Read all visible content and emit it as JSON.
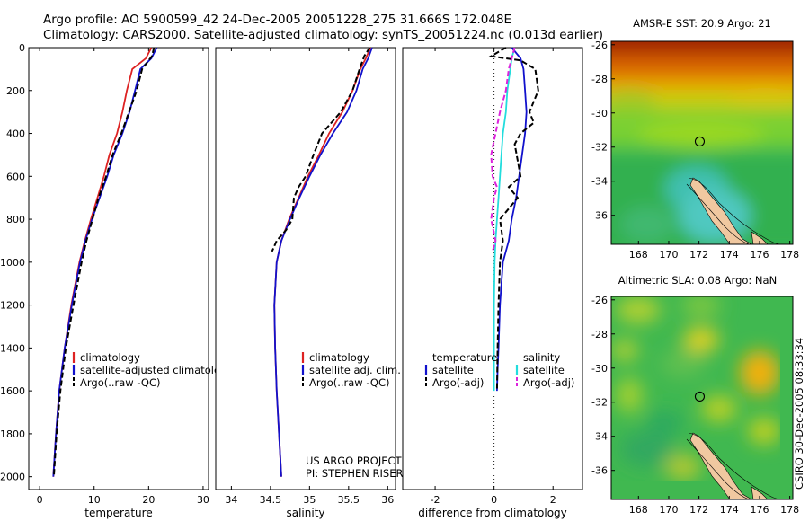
{
  "title_line1": "Argo profile: AO 5900599_42 24-Dec-2005 20051228_275 31.666S 172.048E",
  "title_line2": "Climatology: CARS2000. Satellite-adjusted climatology: synTS_20051224.nc (0.013d earlier)",
  "credit": "CSIRO 30-Dec-2005 08:33:34",
  "project_line1": "US ARGO PROJECT",
  "project_line2": "PI: STEPHEN RISER",
  "colors": {
    "climatology": "#dd2222",
    "satellite": "#1111cc",
    "argo": "#000000",
    "sat_salinity": "#22dddd",
    "argo_salinity": "#dd22dd"
  },
  "chart_data": [
    {
      "type": "line",
      "xlabel": "temperature",
      "ylabel": "",
      "xlim": [
        -2,
        31
      ],
      "ylim": [
        0,
        2060
      ],
      "y_reversed": true,
      "xticks": [
        0,
        10,
        20,
        30
      ],
      "yticks": [
        0,
        200,
        400,
        600,
        800,
        1000,
        1200,
        1400,
        1600,
        1800,
        2000
      ],
      "legend": [
        "climatology",
        "satellite-adjusted climatology",
        "Argo(..raw -QC)"
      ],
      "series": [
        {
          "name": "climatology",
          "style": "solid",
          "color": "#dd2222",
          "points": [
            [
              20.5,
              0
            ],
            [
              19.5,
              50
            ],
            [
              17,
              100
            ],
            [
              16,
              200
            ],
            [
              15.2,
              300
            ],
            [
              14.2,
              400
            ],
            [
              12.8,
              500
            ],
            [
              11.8,
              600
            ],
            [
              10.6,
              700
            ],
            [
              9.4,
              800
            ],
            [
              8.3,
              900
            ],
            [
              7.3,
              1000
            ],
            [
              5.8,
              1200
            ],
            [
              4.6,
              1400
            ],
            [
              3.6,
              1600
            ],
            [
              3.0,
              1800
            ],
            [
              2.5,
              2000
            ]
          ]
        },
        {
          "name": "satellite-adjusted climatology",
          "style": "solid",
          "color": "#1111cc",
          "points": [
            [
              21.5,
              0
            ],
            [
              20.5,
              50
            ],
            [
              18.5,
              100
            ],
            [
              17.5,
              200
            ],
            [
              16.5,
              300
            ],
            [
              15.2,
              400
            ],
            [
              13.6,
              500
            ],
            [
              12.4,
              600
            ],
            [
              11.0,
              700
            ],
            [
              9.6,
              800
            ],
            [
              8.4,
              900
            ],
            [
              7.4,
              1000
            ],
            [
              5.9,
              1200
            ],
            [
              4.6,
              1400
            ],
            [
              3.6,
              1600
            ],
            [
              3.0,
              1800
            ],
            [
              2.5,
              2000
            ]
          ]
        },
        {
          "name": "Argo(..raw -QC)",
          "style": "dash",
          "color": "#000000",
          "points": [
            [
              21.0,
              0
            ],
            [
              20.6,
              40
            ],
            [
              18.8,
              100
            ],
            [
              17.8,
              200
            ],
            [
              16.4,
              300
            ],
            [
              15.0,
              400
            ],
            [
              13.4,
              500
            ],
            [
              12.2,
              600
            ],
            [
              10.8,
              700
            ],
            [
              9.7,
              800
            ],
            [
              8.6,
              900
            ],
            [
              7.7,
              1000
            ],
            [
              6.2,
              1200
            ],
            [
              4.8,
              1400
            ],
            [
              3.8,
              1600
            ],
            [
              3.1,
              1800
            ],
            [
              2.6,
              2000
            ]
          ]
        }
      ]
    },
    {
      "type": "line",
      "xlabel": "salinity",
      "ylabel": "",
      "xlim": [
        33.8,
        36.1
      ],
      "ylim": [
        0,
        2060
      ],
      "y_reversed": true,
      "xticks": [
        34,
        34.5,
        35,
        35.5,
        36
      ],
      "legend": [
        "climatology",
        "satellite adj. clim.",
        "Argo(..raw -QC)"
      ],
      "series": [
        {
          "name": "climatology",
          "style": "solid",
          "color": "#dd2222",
          "points": [
            [
              35.78,
              0
            ],
            [
              35.72,
              50
            ],
            [
              35.65,
              100
            ],
            [
              35.55,
              200
            ],
            [
              35.42,
              300
            ],
            [
              35.25,
              400
            ],
            [
              35.12,
              500
            ],
            [
              34.98,
              600
            ],
            [
              34.86,
              700
            ],
            [
              34.74,
              800
            ],
            [
              34.64,
              900
            ],
            [
              34.58,
              1000
            ],
            [
              34.55,
              1200
            ],
            [
              34.56,
              1400
            ],
            [
              34.58,
              1600
            ],
            [
              34.61,
              1800
            ],
            [
              34.64,
              2000
            ]
          ]
        },
        {
          "name": "satellite adj. clim.",
          "style": "solid",
          "color": "#1111cc",
          "points": [
            [
              35.8,
              0
            ],
            [
              35.75,
              50
            ],
            [
              35.68,
              100
            ],
            [
              35.6,
              200
            ],
            [
              35.48,
              300
            ],
            [
              35.3,
              400
            ],
            [
              35.14,
              500
            ],
            [
              35.0,
              600
            ],
            [
              34.87,
              700
            ],
            [
              34.75,
              800
            ],
            [
              34.64,
              900
            ],
            [
              34.58,
              1000
            ],
            [
              34.55,
              1200
            ],
            [
              34.56,
              1400
            ],
            [
              34.58,
              1600
            ],
            [
              34.61,
              1800
            ],
            [
              34.64,
              2000
            ]
          ]
        },
        {
          "name": "Argo(..raw -QC)",
          "style": "dash",
          "color": "#000000",
          "points": [
            [
              35.77,
              0
            ],
            [
              35.7,
              40
            ],
            [
              35.64,
              100
            ],
            [
              35.55,
              200
            ],
            [
              35.4,
              300
            ],
            [
              35.16,
              400
            ],
            [
              35.05,
              500
            ],
            [
              34.95,
              600
            ],
            [
              34.86,
              650
            ],
            [
              34.8,
              700
            ],
            [
              34.78,
              800
            ],
            [
              34.7,
              850
            ],
            [
              34.58,
              900
            ],
            [
              34.52,
              950
            ]
          ]
        }
      ]
    },
    {
      "type": "line",
      "xlabel": "difference from climatology",
      "ylabel": "",
      "xlim": [
        -3.1,
        3.0
      ],
      "ylim": [
        0,
        2060
      ],
      "y_reversed": true,
      "xticks": [
        -2,
        0,
        2
      ],
      "legend": [
        "temperature",
        "satellite",
        "Argo(-adj)",
        "salinity",
        "satellite",
        "Argo(-adj)"
      ],
      "series": [
        {
          "name": "satellite",
          "group": "temperature",
          "style": "solid",
          "color": "#1111cc",
          "points": [
            [
              0.6,
              0
            ],
            [
              0.9,
              50
            ],
            [
              1.0,
              100
            ],
            [
              1.05,
              200
            ],
            [
              1.1,
              300
            ],
            [
              1.05,
              400
            ],
            [
              0.95,
              500
            ],
            [
              0.85,
              600
            ],
            [
              0.75,
              700
            ],
            [
              0.6,
              800
            ],
            [
              0.5,
              900
            ],
            [
              0.3,
              1000
            ],
            [
              0.2,
              1200
            ],
            [
              0.15,
              1400
            ],
            [
              0.12,
              1500
            ],
            [
              0.1,
              1600
            ]
          ]
        },
        {
          "name": "Argo(-adj)",
          "group": "temperature",
          "style": "dash",
          "color": "#000000",
          "points": [
            [
              0.4,
              0
            ],
            [
              -0.1,
              40
            ],
            [
              0.9,
              60
            ],
            [
              1.4,
              100
            ],
            [
              1.5,
              200
            ],
            [
              1.2,
              300
            ],
            [
              1.35,
              350
            ],
            [
              0.9,
              400
            ],
            [
              0.7,
              450
            ],
            [
              0.9,
              600
            ],
            [
              0.5,
              650
            ],
            [
              0.8,
              700
            ],
            [
              0.2,
              800
            ],
            [
              0.3,
              900
            ],
            [
              0.2,
              1000
            ],
            [
              0.15,
              1200
            ],
            [
              0.12,
              1400
            ],
            [
              0.1,
              1600
            ]
          ]
        },
        {
          "name": "satellite",
          "group": "salinity",
          "style": "solid",
          "color": "#22dddd",
          "points": [
            [
              0.7,
              0
            ],
            [
              0.6,
              50
            ],
            [
              0.55,
              100
            ],
            [
              0.45,
              200
            ],
            [
              0.4,
              300
            ],
            [
              0.3,
              400
            ],
            [
              0.25,
              500
            ],
            [
              0.2,
              600
            ],
            [
              0.15,
              700
            ],
            [
              0.1,
              800
            ],
            [
              0.05,
              900
            ],
            [
              0.02,
              1000
            ],
            [
              0.0,
              1200
            ],
            [
              0.0,
              1400
            ],
            [
              0.0,
              1600
            ]
          ]
        },
        {
          "name": "Argo(-adj)",
          "group": "salinity",
          "style": "dash",
          "color": "#dd22dd",
          "points": [
            [
              0.7,
              0
            ],
            [
              0.5,
              100
            ],
            [
              0.4,
              200
            ],
            [
              0.2,
              300
            ],
            [
              0.05,
              400
            ],
            [
              -0.1,
              500
            ],
            [
              -0.05,
              600
            ],
            [
              0.1,
              650
            ],
            [
              0.0,
              700
            ],
            [
              -0.1,
              800
            ],
            [
              0.05,
              900
            ],
            [
              -0.05,
              950
            ]
          ]
        }
      ]
    },
    {
      "type": "heatmap",
      "title": "AMSR-E SST: 20.9 Argo: 21",
      "xticks": [
        168,
        170,
        172,
        174,
        176,
        178
      ],
      "yticks": [
        -26,
        -28,
        -30,
        -32,
        -34,
        -36
      ],
      "xlim": [
        166.2,
        178.2
      ],
      "ylim": [
        -37.7,
        -25.8
      ],
      "marker": {
        "lon": 172.05,
        "lat": -31.67
      }
    },
    {
      "type": "heatmap",
      "title": "Altimetric SLA: 0.08 Argo: NaN",
      "xticks": [
        168,
        170,
        172,
        174,
        176,
        178
      ],
      "yticks": [
        -26,
        -28,
        -30,
        -32,
        -34,
        -36
      ],
      "xlim": [
        166.2,
        178.2
      ],
      "ylim": [
        -37.7,
        -25.8
      ],
      "marker": {
        "lon": 172.05,
        "lat": -31.67
      }
    }
  ]
}
